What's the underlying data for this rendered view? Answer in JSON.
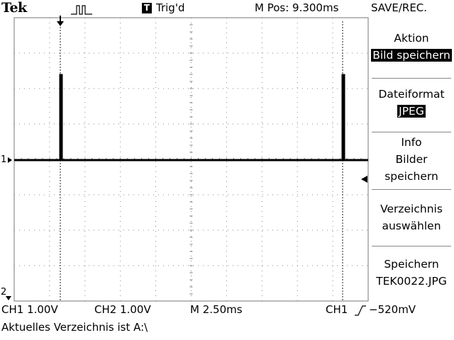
{
  "header": {
    "brand": "Tek",
    "run_state_icon": "pulse-icon",
    "trigger_badge": "T",
    "trigger_status": "Trig'd",
    "main_position": "M Pos: 9.300ms",
    "menu_title": "SAVE/REC."
  },
  "menu": {
    "action_label": "Aktion",
    "action_value": "Bild speichern",
    "format_label": "Dateiformat",
    "format_value": "JPEG",
    "info_line1": "Info",
    "info_line2": "Bilder",
    "info_line3": "speichern",
    "dir_line1": "Verzeichnis",
    "dir_line2": "auswählen",
    "save_line1": "Speichern",
    "save_line2": "TEK0022.JPG"
  },
  "markers": {
    "ch1_ground": "1",
    "ch2_ground": "2"
  },
  "readout": {
    "ch1": "CH1  1.00V",
    "ch2": "CH2  1.00V",
    "timebase": "M 2.50ms",
    "trigger_source": "CH1",
    "trigger_level": "−520mV"
  },
  "status": {
    "message": "Aktuelles Verzeichnis ist A:\\"
  }
}
